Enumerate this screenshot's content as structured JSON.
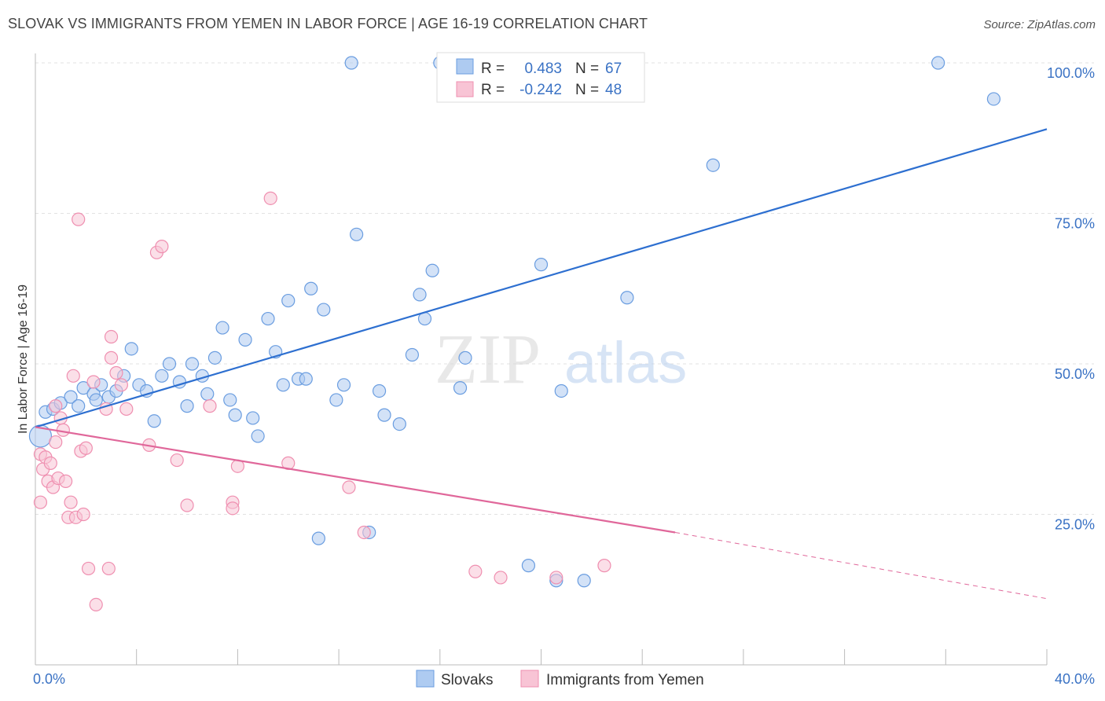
{
  "title": "SLOVAK VS IMMIGRANTS FROM YEMEN IN LABOR FORCE | AGE 16-19 CORRELATION CHART",
  "source": "Source: ZipAtlas.com",
  "watermark": {
    "zip": "ZIP",
    "atlas": "atlas"
  },
  "chart_data": {
    "type": "scatter",
    "ylabel": "In Labor Force | Age 16-19",
    "xlim": [
      0,
      40
    ],
    "ylim": [
      0,
      100
    ],
    "x_tick_labels": {
      "min": "0.0%",
      "max": "40.0%"
    },
    "y_ticks": [
      {
        "value": 25,
        "label": "25.0%"
      },
      {
        "value": 50,
        "label": "50.0%"
      },
      {
        "value": 75,
        "label": "75.0%"
      },
      {
        "value": 100,
        "label": "100.0%"
      }
    ],
    "grid": true,
    "legend_position": "top-center",
    "stats": [
      {
        "r_label": "R =",
        "r": "0.483",
        "n_label": "N =",
        "n": "67",
        "color": "#6a9de0"
      },
      {
        "r_label": "R =",
        "r": "-0.242",
        "n_label": "N =",
        "n": "48",
        "color": "#ef8fb0"
      }
    ],
    "series": [
      {
        "name": "Slovaks",
        "color": "#6a9de0",
        "fill": "#aecbf1",
        "line_color": "#2d6fd0",
        "trend": {
          "x": [
            0.0,
            40.0
          ],
          "y": [
            39.5,
            89.0
          ],
          "dashed_from": null
        },
        "points": [
          [
            0.2,
            38.0
          ],
          [
            0.4,
            42.0
          ],
          [
            0.7,
            42.5
          ],
          [
            1.0,
            43.5
          ],
          [
            1.4,
            44.5
          ],
          [
            1.7,
            43.0
          ],
          [
            1.9,
            46.0
          ],
          [
            2.3,
            45.0
          ],
          [
            2.6,
            46.5
          ],
          [
            2.9,
            44.5
          ],
          [
            3.2,
            45.5
          ],
          [
            3.5,
            48.0
          ],
          [
            3.8,
            52.5
          ],
          [
            4.1,
            46.5
          ],
          [
            4.4,
            45.5
          ],
          [
            4.7,
            40.5
          ],
          [
            5.0,
            48.0
          ],
          [
            5.3,
            50.0
          ],
          [
            5.7,
            47.0
          ],
          [
            6.0,
            43.0
          ],
          [
            6.2,
            50.0
          ],
          [
            6.6,
            48.0
          ],
          [
            6.8,
            45.0
          ],
          [
            7.1,
            51.0
          ],
          [
            7.4,
            56.0
          ],
          [
            7.7,
            44.0
          ],
          [
            7.9,
            41.5
          ],
          [
            8.3,
            54.0
          ],
          [
            8.6,
            41.0
          ],
          [
            8.8,
            38.0
          ],
          [
            9.2,
            57.5
          ],
          [
            9.5,
            52.0
          ],
          [
            9.8,
            46.5
          ],
          [
            10.0,
            60.5
          ],
          [
            10.4,
            47.5
          ],
          [
            10.7,
            47.5
          ],
          [
            10.9,
            62.5
          ],
          [
            11.4,
            59.0
          ],
          [
            11.9,
            44.0
          ],
          [
            12.2,
            46.5
          ],
          [
            12.5,
            100.0
          ],
          [
            12.7,
            71.5
          ],
          [
            13.2,
            22.0
          ],
          [
            13.6,
            45.5
          ],
          [
            13.8,
            41.5
          ],
          [
            14.4,
            40.0
          ],
          [
            14.9,
            51.5
          ],
          [
            15.2,
            61.5
          ],
          [
            15.4,
            57.5
          ],
          [
            15.7,
            65.5
          ],
          [
            16.0,
            100.0
          ],
          [
            16.3,
            100.0
          ],
          [
            16.8,
            46.0
          ],
          [
            17.0,
            51.0
          ],
          [
            11.2,
            21.0
          ],
          [
            19.5,
            16.5
          ],
          [
            20.0,
            66.5
          ],
          [
            20.6,
            14.0
          ],
          [
            20.8,
            45.5
          ],
          [
            21.6,
            100.0
          ],
          [
            21.7,
            14.0
          ],
          [
            23.6,
            100.0
          ],
          [
            23.4,
            61.0
          ],
          [
            26.8,
            83.0
          ],
          [
            35.7,
            100.0
          ],
          [
            37.9,
            94.0
          ],
          [
            2.4,
            44.0
          ]
        ]
      },
      {
        "name": "Immigrants from Yemen",
        "color": "#ef8fb0",
        "fill": "#f8c4d5",
        "line_color": "#e0679a",
        "trend": {
          "x": [
            0.0,
            25.3,
            40.0
          ],
          "y": [
            39.5,
            22.0,
            11.0
          ],
          "dashed_from": 25.3
        },
        "points": [
          [
            0.2,
            27.0
          ],
          [
            0.2,
            35.0
          ],
          [
            0.3,
            32.5
          ],
          [
            0.4,
            34.5
          ],
          [
            0.5,
            30.5
          ],
          [
            0.6,
            33.5
          ],
          [
            0.7,
            29.5
          ],
          [
            0.8,
            43.0
          ],
          [
            0.8,
            37.0
          ],
          [
            0.9,
            31.0
          ],
          [
            1.0,
            41.0
          ],
          [
            1.1,
            39.0
          ],
          [
            1.2,
            30.5
          ],
          [
            1.3,
            24.5
          ],
          [
            1.4,
            27.0
          ],
          [
            1.5,
            48.0
          ],
          [
            1.6,
            24.5
          ],
          [
            1.7,
            74.0
          ],
          [
            1.8,
            35.5
          ],
          [
            1.9,
            25.0
          ],
          [
            2.0,
            36.0
          ],
          [
            2.1,
            16.0
          ],
          [
            2.3,
            47.0
          ],
          [
            2.4,
            10.0
          ],
          [
            2.8,
            42.5
          ],
          [
            2.9,
            16.0
          ],
          [
            3.0,
            54.5
          ],
          [
            3.0,
            51.0
          ],
          [
            3.2,
            48.5
          ],
          [
            3.4,
            46.5
          ],
          [
            3.6,
            42.5
          ],
          [
            4.5,
            36.5
          ],
          [
            4.8,
            68.5
          ],
          [
            5.0,
            69.5
          ],
          [
            5.6,
            34.0
          ],
          [
            6.0,
            26.5
          ],
          [
            6.9,
            43.0
          ],
          [
            7.8,
            27.0
          ],
          [
            7.8,
            26.0
          ],
          [
            8.0,
            33.0
          ],
          [
            9.3,
            77.5
          ],
          [
            10.0,
            33.5
          ],
          [
            12.4,
            29.5
          ],
          [
            13.0,
            22.0
          ],
          [
            17.4,
            15.5
          ],
          [
            18.4,
            14.5
          ],
          [
            20.6,
            14.5
          ],
          [
            22.5,
            16.5
          ]
        ]
      }
    ]
  }
}
